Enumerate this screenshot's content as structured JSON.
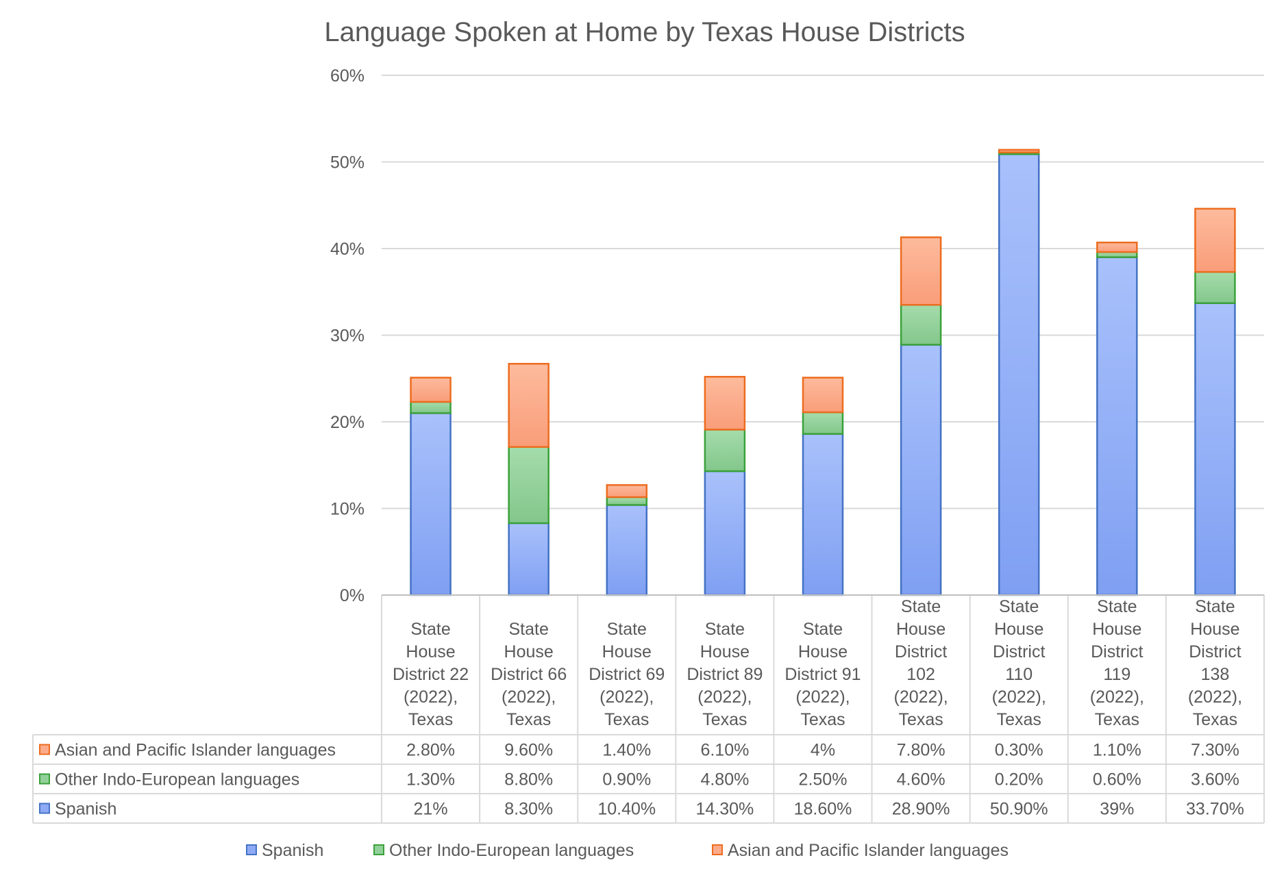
{
  "chart_data": {
    "type": "bar",
    "stacked": true,
    "title": "Language Spoken at Home by Texas House Districts",
    "xlabel": "",
    "ylabel": "",
    "ylim": [
      0,
      60
    ],
    "yticks": [
      "0%",
      "10%",
      "20%",
      "30%",
      "40%",
      "50%",
      "60%"
    ],
    "grid": true,
    "legend_position": "bottom",
    "categories": [
      "State House District 22 (2022), Texas",
      "State House District 66 (2022), Texas",
      "State House District 69 (2022), Texas",
      "State House District 89 (2022), Texas",
      "State House District 91 (2022), Texas",
      "State House District 102 (2022), Texas",
      "State House District 110 (2022), Texas",
      "State House District 119 (2022), Texas",
      "State House District 138 (2022), Texas"
    ],
    "category_lines": [
      [
        "State",
        "House",
        "District 22",
        "(2022),",
        "Texas"
      ],
      [
        "State",
        "House",
        "District 66",
        "(2022),",
        "Texas"
      ],
      [
        "State",
        "House",
        "District 69",
        "(2022),",
        "Texas"
      ],
      [
        "State",
        "House",
        "District 89",
        "(2022),",
        "Texas"
      ],
      [
        "State",
        "House",
        "District 91",
        "(2022),",
        "Texas"
      ],
      [
        "State",
        "House",
        "District",
        "102",
        "(2022),",
        "Texas"
      ],
      [
        "State",
        "House",
        "District",
        "110",
        "(2022),",
        "Texas"
      ],
      [
        "State",
        "House",
        "District",
        "119",
        "(2022),",
        "Texas"
      ],
      [
        "State",
        "House",
        "District",
        "138",
        "(2022),",
        "Texas"
      ]
    ],
    "series": [
      {
        "name": "Spanish",
        "fill": "#8faaf5",
        "stroke": "#4472c4",
        "values": [
          21,
          8.3,
          10.4,
          14.3,
          18.6,
          28.9,
          50.9,
          39,
          33.7
        ],
        "labels": [
          "21%",
          "8.30%",
          "10.40%",
          "14.30%",
          "18.60%",
          "28.90%",
          "50.90%",
          "39%",
          "33.70%"
        ]
      },
      {
        "name": "Other Indo-European languages",
        "fill": "#92d09a",
        "stroke": "#3aa13a",
        "values": [
          1.3,
          8.8,
          0.9,
          4.8,
          2.5,
          4.6,
          0.2,
          0.6,
          3.6
        ],
        "labels": [
          "1.30%",
          "8.80%",
          "0.90%",
          "4.80%",
          "2.50%",
          "4.60%",
          "0.20%",
          "0.60%",
          "3.60%"
        ]
      },
      {
        "name": "Asian and Pacific Islander languages",
        "fill": "#fbab8a",
        "stroke": "#ed6c1f",
        "values": [
          2.8,
          9.6,
          1.4,
          6.1,
          4,
          7.8,
          0.3,
          1.1,
          7.3
        ],
        "labels": [
          "2.80%",
          "9.60%",
          "1.40%",
          "6.10%",
          "4%",
          "7.80%",
          "0.30%",
          "1.10%",
          "7.30%"
        ]
      }
    ]
  }
}
